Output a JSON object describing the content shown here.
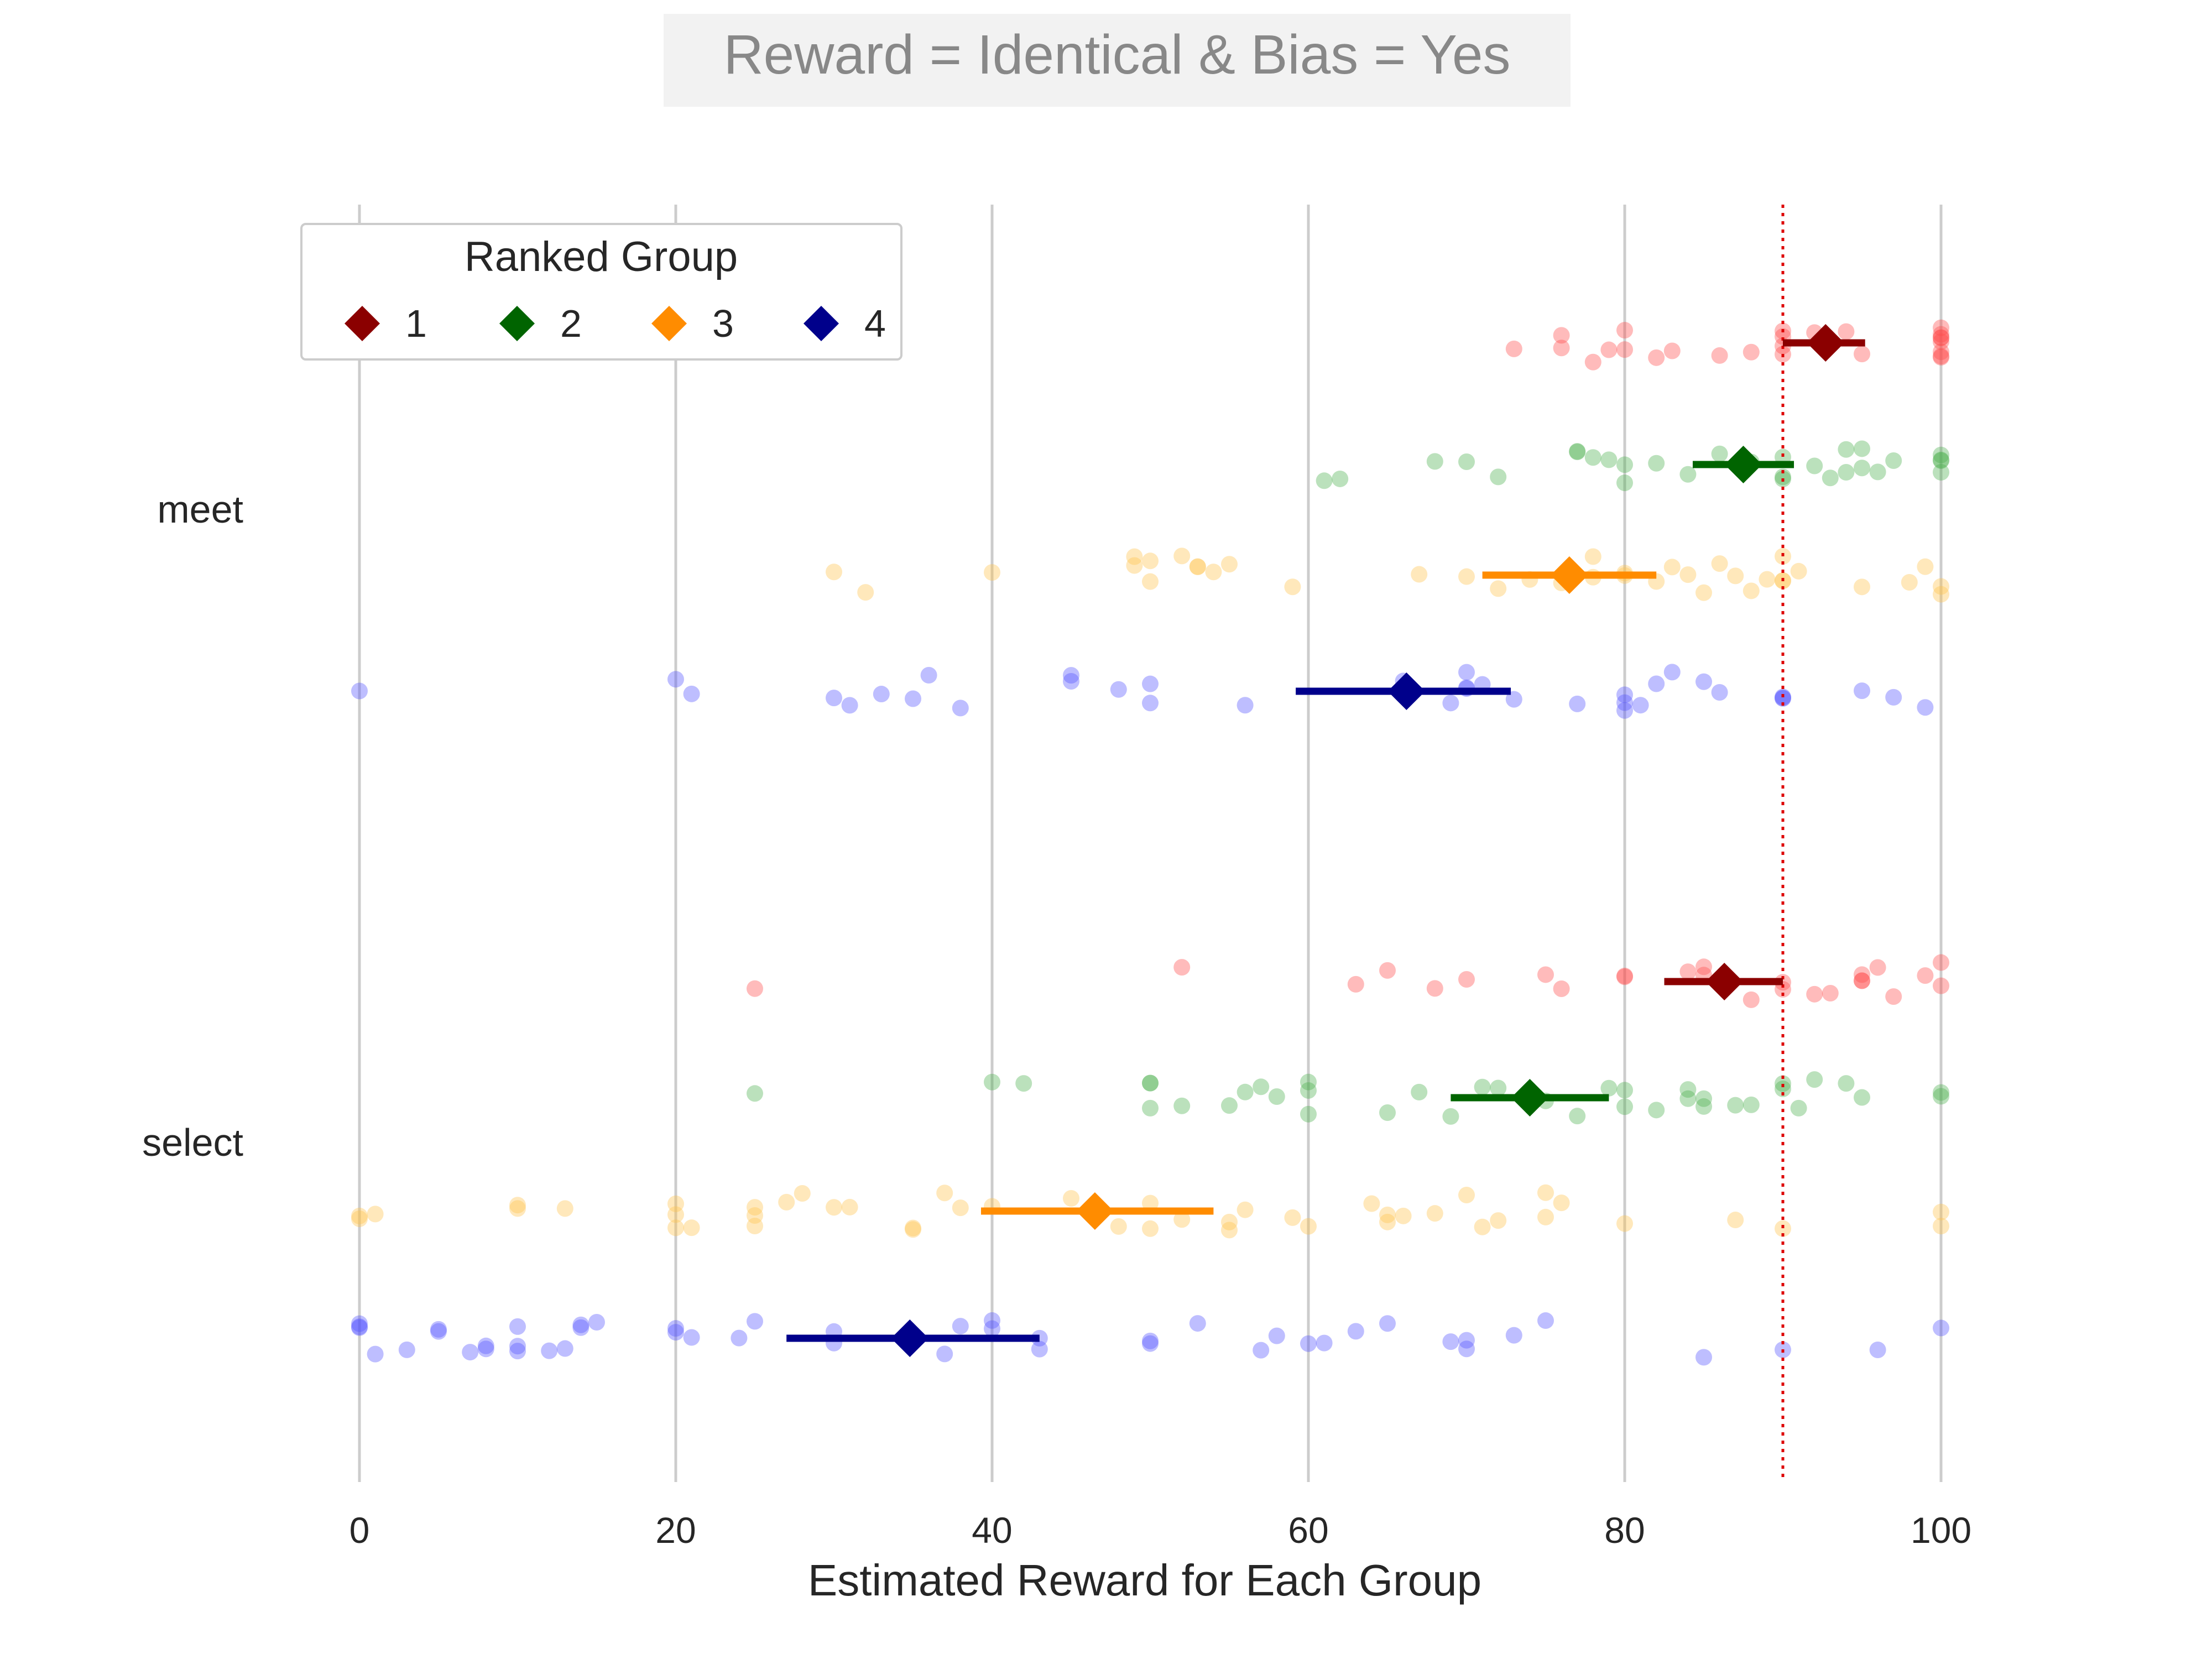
{
  "chart_data": {
    "type": "scatter",
    "title": "Reward = Identical & Bias = Yes",
    "xlabel": "Estimated Reward for Each Group",
    "ylabel": "",
    "xlim": [
      -15,
      112
    ],
    "xticks": [
      0,
      20,
      40,
      60,
      80,
      100
    ],
    "grid": "vertical",
    "reference_line": {
      "x": 90,
      "style": "dotted",
      "color": "#dd0000"
    },
    "categories": [
      "meet",
      "select"
    ],
    "legend": {
      "title": "Ranked Group",
      "position": "top-left",
      "entries": [
        {
          "group": 1,
          "label": "1"
        },
        {
          "group": 2,
          "label": "2"
        },
        {
          "group": 3,
          "label": "3"
        },
        {
          "group": 4,
          "label": "4"
        }
      ]
    },
    "colors": {
      "mean": {
        "1": "#8b0000",
        "2": "#006400",
        "3": "#ff8c00",
        "4": "#00008b"
      },
      "points": {
        "1": "#ff4d4d",
        "2": "#4caf50",
        "3": "#ffc24d",
        "4": "#5555ff"
      },
      "grid": "#cccccc",
      "title_text": "#888888",
      "title_box": "#f2f2f2"
    },
    "series": [
      {
        "category": "meet",
        "group": 1,
        "mean": 92.7,
        "ci": [
          90.0,
          95.2
        ],
        "points": [
          73,
          76,
          76,
          78,
          79,
          80,
          80,
          82,
          83,
          86,
          88,
          90,
          90,
          90,
          90,
          92,
          94,
          95,
          100,
          100,
          100,
          100,
          100,
          100,
          100,
          100
        ]
      },
      {
        "category": "meet",
        "group": 2,
        "mean": 87.5,
        "ci": [
          84.3,
          90.7
        ],
        "points": [
          61,
          62,
          68,
          70,
          72,
          77,
          77,
          78,
          79,
          80,
          80,
          82,
          84,
          86,
          88,
          90,
          90,
          90,
          92,
          93,
          94,
          94,
          95,
          95,
          96,
          97,
          100,
          100,
          100,
          100
        ]
      },
      {
        "category": "meet",
        "group": 3,
        "mean": 76.5,
        "ci": [
          71.0,
          82.0
        ],
        "points": [
          30,
          32,
          40,
          49,
          49,
          50,
          50,
          52,
          53,
          53,
          54,
          55,
          59,
          67,
          70,
          72,
          74,
          76,
          78,
          78,
          80,
          80,
          82,
          83,
          84,
          85,
          86,
          87,
          88,
          89,
          90,
          90,
          90,
          91,
          95,
          98,
          99,
          100,
          100
        ]
      },
      {
        "category": "meet",
        "group": 4,
        "mean": 66.2,
        "ci": [
          59.2,
          72.8
        ],
        "points": [
          0,
          20,
          21,
          30,
          31,
          33,
          35,
          36,
          38,
          45,
          45,
          48,
          50,
          50,
          56,
          66,
          69,
          70,
          70,
          70,
          71,
          73,
          77,
          80,
          80,
          80,
          81,
          82,
          83,
          85,
          86,
          90,
          90,
          90,
          95,
          97,
          99
        ]
      },
      {
        "category": "select",
        "group": 1,
        "mean": 86.3,
        "ci": [
          82.5,
          90.0
        ],
        "points": [
          25,
          52,
          63,
          65,
          68,
          70,
          75,
          76,
          80,
          80,
          84,
          85,
          85,
          86,
          88,
          90,
          90,
          92,
          93,
          95,
          95,
          95,
          96,
          97,
          99,
          100,
          100
        ]
      },
      {
        "category": "select",
        "group": 2,
        "mean": 74.0,
        "ci": [
          69.0,
          79.0
        ],
        "points": [
          25,
          40,
          42,
          50,
          50,
          50,
          52,
          55,
          56,
          57,
          58,
          60,
          60,
          60,
          65,
          67,
          69,
          71,
          72,
          75,
          77,
          79,
          80,
          80,
          82,
          84,
          84,
          85,
          85,
          87,
          88,
          90,
          90,
          91,
          92,
          94,
          95,
          100,
          100
        ]
      },
      {
        "category": "select",
        "group": 3,
        "mean": 46.5,
        "ci": [
          39.3,
          54.0
        ],
        "points": [
          0,
          0,
          1,
          10,
          10,
          13,
          20,
          20,
          20,
          21,
          25,
          25,
          25,
          27,
          28,
          30,
          31,
          35,
          35,
          37,
          38,
          40,
          45,
          48,
          50,
          50,
          52,
          55,
          55,
          56,
          59,
          60,
          64,
          65,
          65,
          66,
          68,
          70,
          71,
          72,
          75,
          75,
          76,
          80,
          87,
          90,
          100,
          100
        ]
      },
      {
        "category": "select",
        "group": 4,
        "mean": 34.8,
        "ci": [
          27.0,
          43.0
        ],
        "points": [
          0,
          0,
          0,
          1,
          3,
          5,
          5,
          7,
          8,
          8,
          10,
          10,
          10,
          12,
          13,
          14,
          14,
          15,
          20,
          20,
          21,
          24,
          25,
          30,
          30,
          37,
          38,
          40,
          40,
          43,
          43,
          50,
          50,
          53,
          57,
          58,
          60,
          61,
          63,
          65,
          69,
          70,
          70,
          73,
          75,
          85,
          90,
          96,
          100
        ]
      }
    ]
  }
}
